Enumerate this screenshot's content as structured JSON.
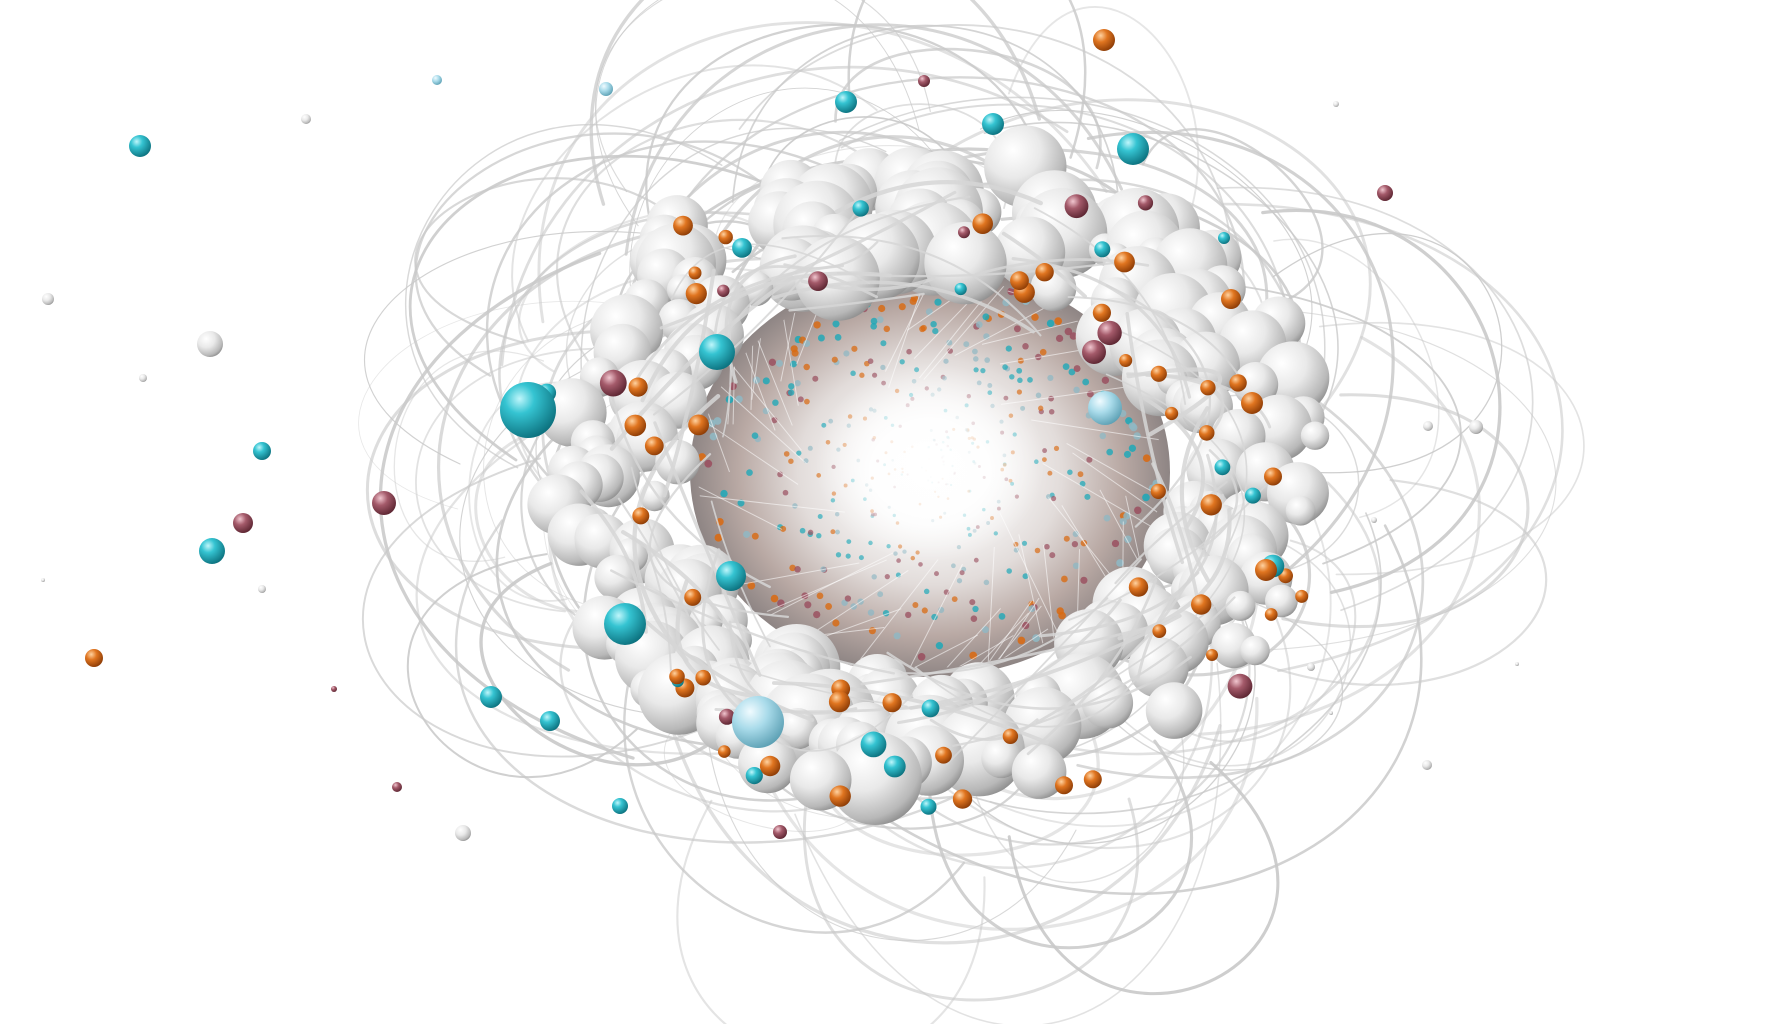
{
  "image": {
    "subject": "spheres-ring",
    "palette": {
      "background": "#ffffff",
      "sphere_light": "#fbfbfb",
      "sphere_mid": "#d9d9d9",
      "sphere_dark": "#9e9e9e",
      "wire": "#c9c9c9",
      "teal": "#1ba8b8",
      "orange": "#d96a12",
      "rose": "#9a4f5f",
      "core_glow": "#ffffff",
      "core_shadow": "#c7b3ad"
    }
  }
}
